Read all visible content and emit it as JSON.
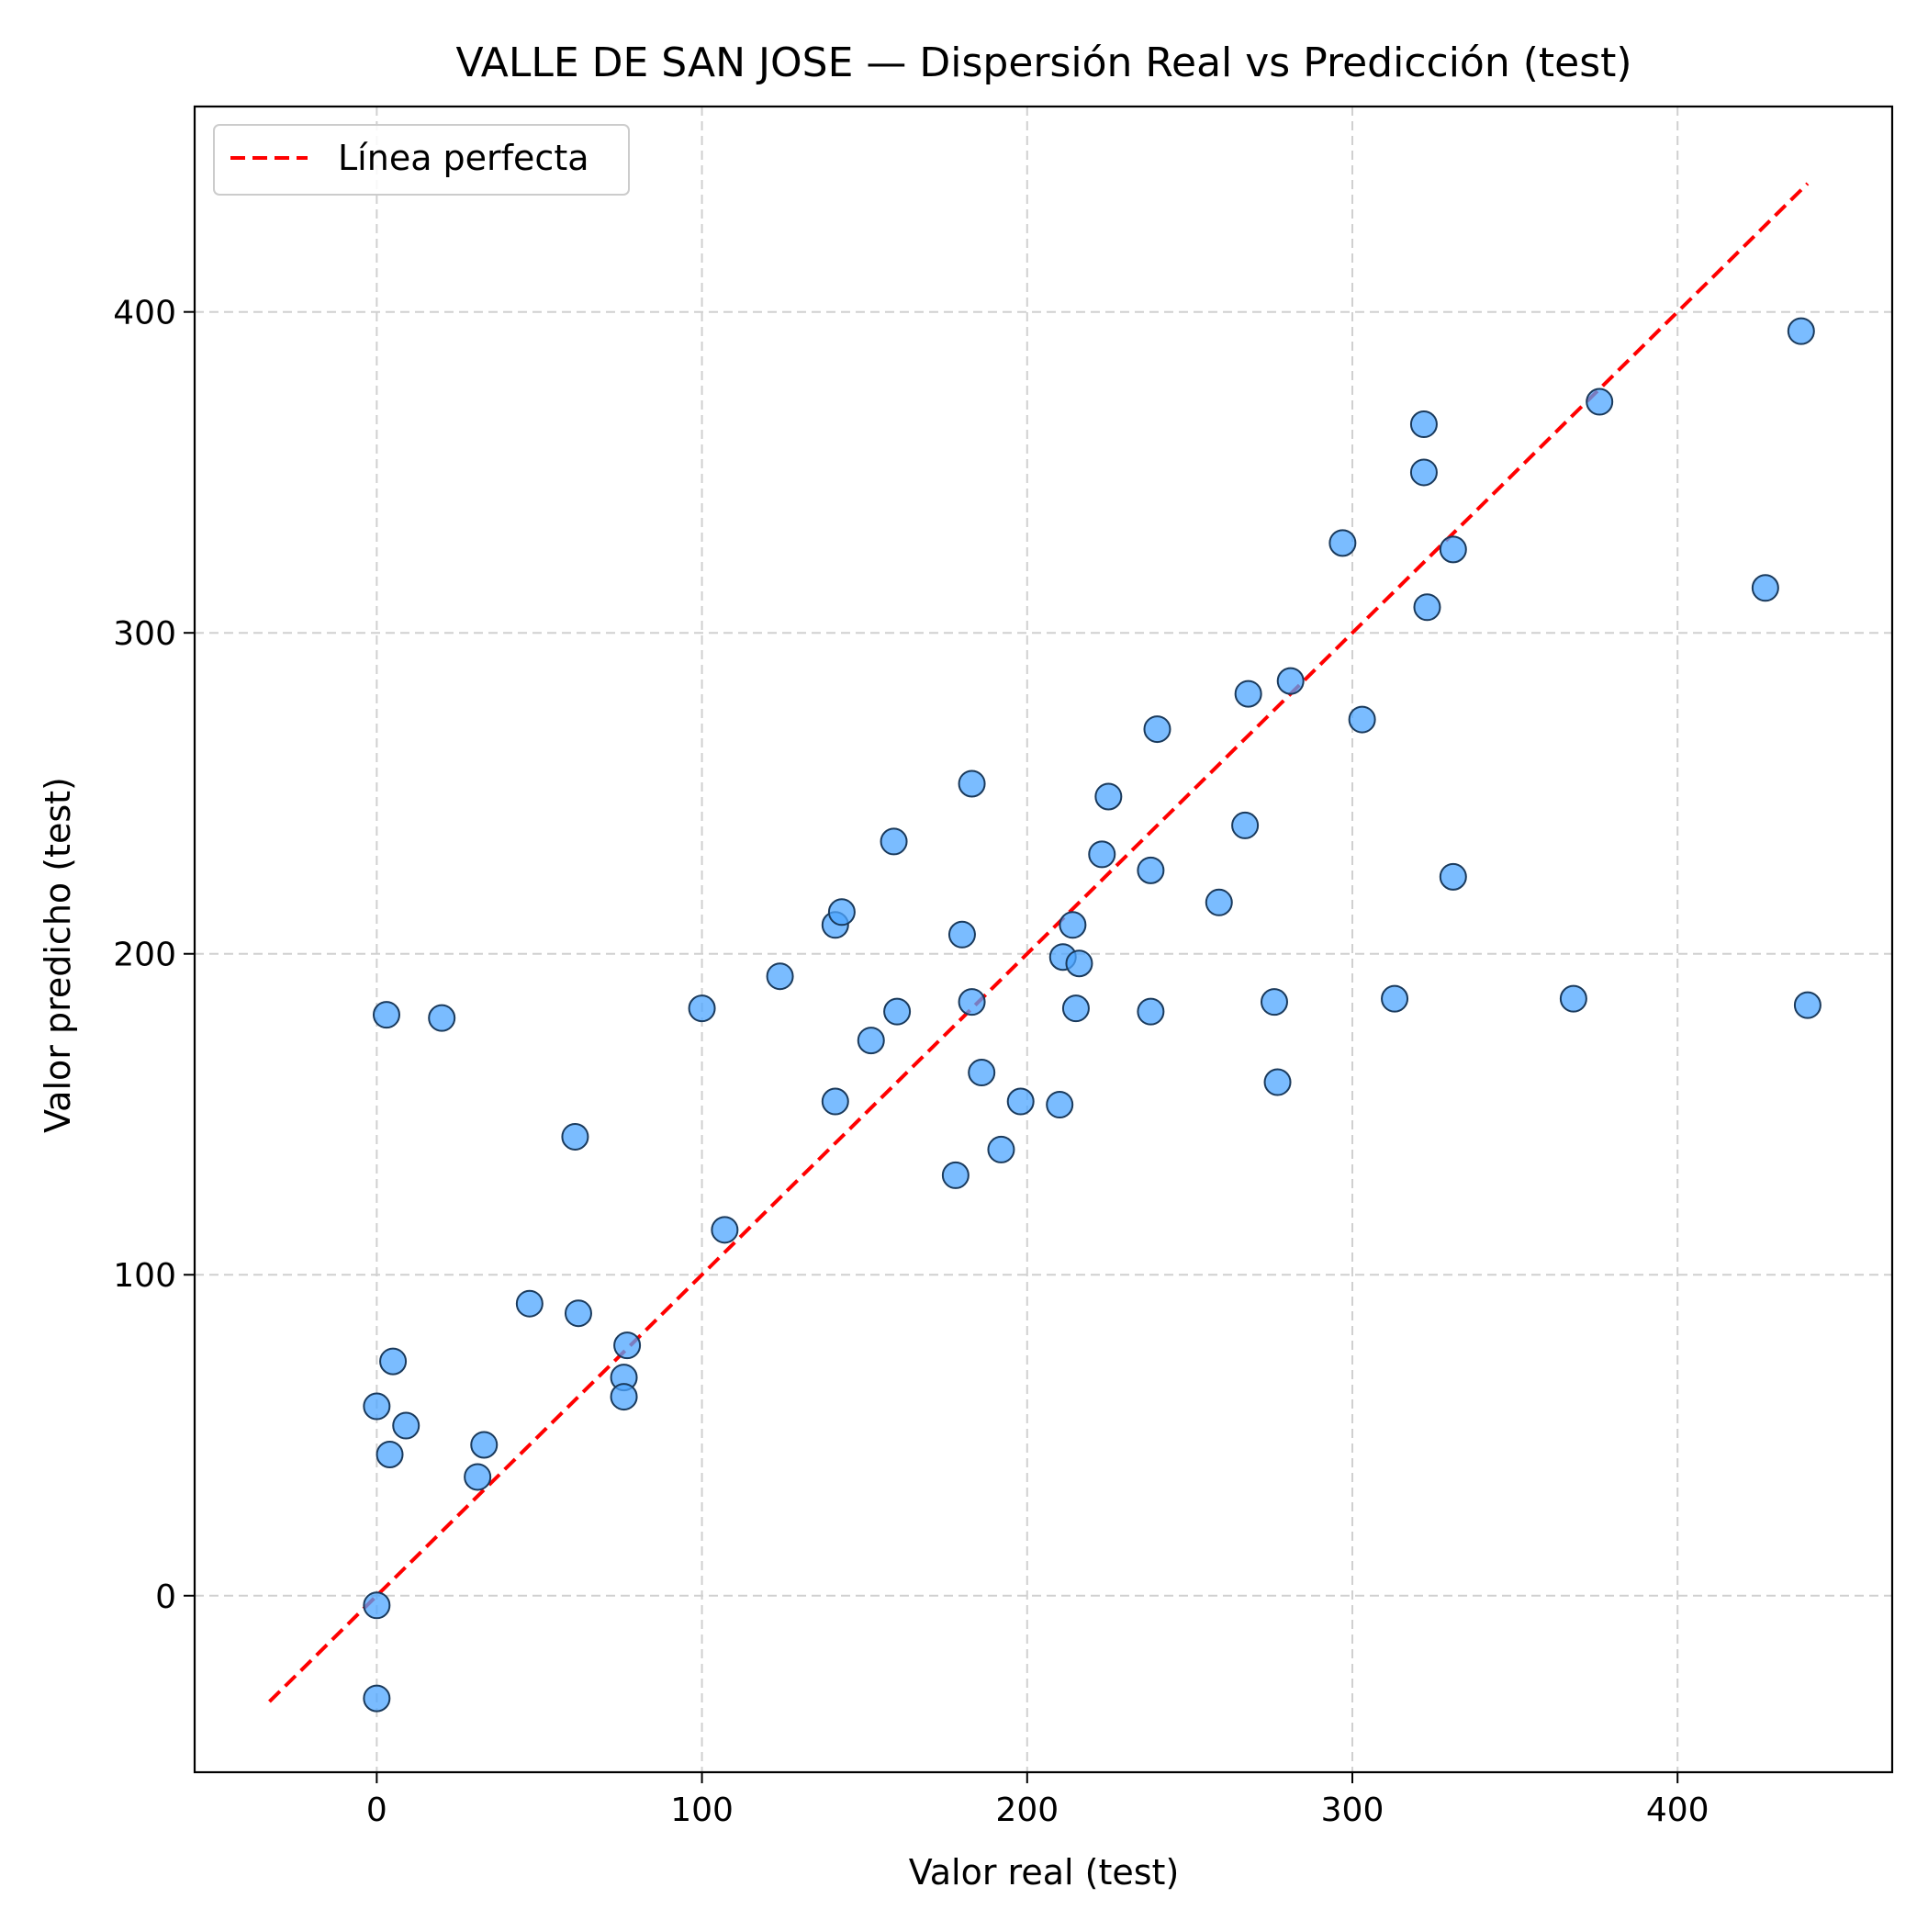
{
  "chart_data": {
    "type": "scatter",
    "title": "VALLE DE SAN JOSE — Dispersión Real vs Predicción (test)",
    "xlabel": "Valor real (test)",
    "ylabel": "Valor predicho (test)",
    "xlim": [
      -56,
      466
    ],
    "ylim": [
      -55,
      464
    ],
    "xticks": [
      0,
      100,
      200,
      300,
      400
    ],
    "yticks": [
      0,
      100,
      200,
      300,
      400
    ],
    "grid": true,
    "legend_position": "top-left",
    "colors": {
      "marker_fill": "#4da6ff",
      "marker_edge": "#1a3a5c",
      "reference_line": "#ff0000",
      "grid": "#d0d0d0"
    },
    "reference_line": {
      "label": "Línea perfecta",
      "style": "dashed",
      "x": [
        -33,
        440
      ],
      "y": [
        -33,
        440
      ]
    },
    "points": [
      {
        "x": 0,
        "y": -32
      },
      {
        "x": 0,
        "y": -3
      },
      {
        "x": 0,
        "y": 59
      },
      {
        "x": 3,
        "y": 181
      },
      {
        "x": 4,
        "y": 44
      },
      {
        "x": 5,
        "y": 73
      },
      {
        "x": 9,
        "y": 53
      },
      {
        "x": 20,
        "y": 180
      },
      {
        "x": 31,
        "y": 37
      },
      {
        "x": 33,
        "y": 47
      },
      {
        "x": 47,
        "y": 91
      },
      {
        "x": 61,
        "y": 143
      },
      {
        "x": 62,
        "y": 88
      },
      {
        "x": 76,
        "y": 68
      },
      {
        "x": 76,
        "y": 62
      },
      {
        "x": 77,
        "y": 78
      },
      {
        "x": 100,
        "y": 183
      },
      {
        "x": 107,
        "y": 114
      },
      {
        "x": 124,
        "y": 193
      },
      {
        "x": 141,
        "y": 154
      },
      {
        "x": 141,
        "y": 209
      },
      {
        "x": 143,
        "y": 213
      },
      {
        "x": 152,
        "y": 173
      },
      {
        "x": 159,
        "y": 235
      },
      {
        "x": 160,
        "y": 182
      },
      {
        "x": 178,
        "y": 131
      },
      {
        "x": 180,
        "y": 206
      },
      {
        "x": 183,
        "y": 253
      },
      {
        "x": 183,
        "y": 185
      },
      {
        "x": 186,
        "y": 163
      },
      {
        "x": 192,
        "y": 139
      },
      {
        "x": 198,
        "y": 154
      },
      {
        "x": 210,
        "y": 153
      },
      {
        "x": 211,
        "y": 199
      },
      {
        "x": 214,
        "y": 209
      },
      {
        "x": 215,
        "y": 183
      },
      {
        "x": 216,
        "y": 197
      },
      {
        "x": 223,
        "y": 231
      },
      {
        "x": 225,
        "y": 249
      },
      {
        "x": 238,
        "y": 182
      },
      {
        "x": 238,
        "y": 226
      },
      {
        "x": 240,
        "y": 270
      },
      {
        "x": 259,
        "y": 216
      },
      {
        "x": 267,
        "y": 240
      },
      {
        "x": 268,
        "y": 281
      },
      {
        "x": 276,
        "y": 185
      },
      {
        "x": 277,
        "y": 160
      },
      {
        "x": 281,
        "y": 285
      },
      {
        "x": 297,
        "y": 328
      },
      {
        "x": 303,
        "y": 273
      },
      {
        "x": 313,
        "y": 186
      },
      {
        "x": 322,
        "y": 365
      },
      {
        "x": 322,
        "y": 350
      },
      {
        "x": 323,
        "y": 308
      },
      {
        "x": 331,
        "y": 224
      },
      {
        "x": 331,
        "y": 326
      },
      {
        "x": 368,
        "y": 186
      },
      {
        "x": 376,
        "y": 372
      },
      {
        "x": 427,
        "y": 314
      },
      {
        "x": 438,
        "y": 394
      },
      {
        "x": 440,
        "y": 184
      }
    ]
  }
}
